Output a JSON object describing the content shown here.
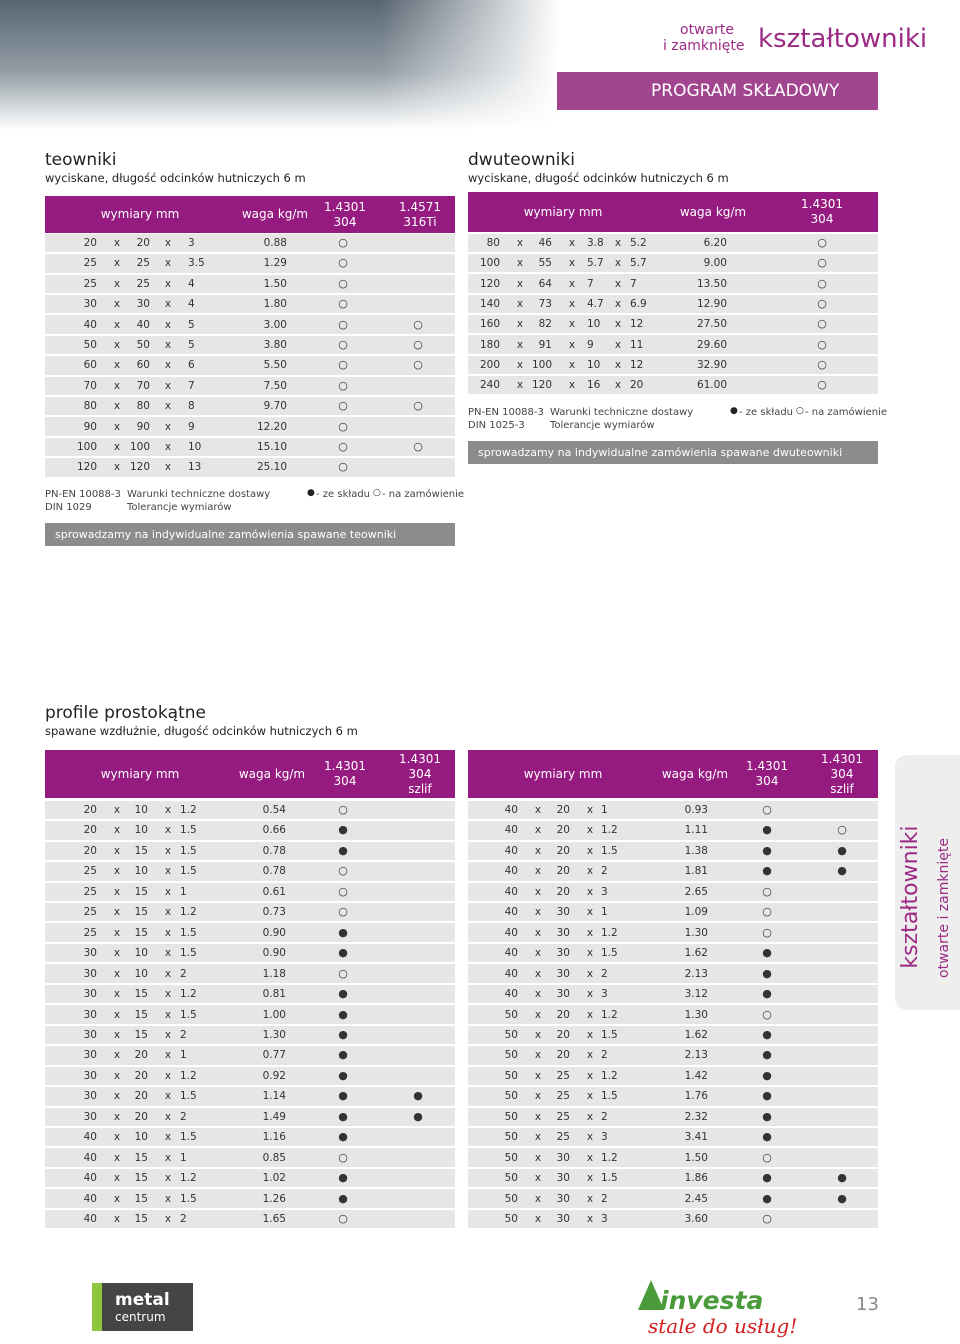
{
  "header": {
    "line1": "otwarte",
    "line2": "i zamknięte",
    "title": "kształtowniki",
    "band": "PROGRAM SKŁADOWY"
  },
  "dim_separator": "x",
  "teowniki": {
    "title": "teowniki",
    "subtitle": "wyciskane, długość odcinków hutniczych 6 m",
    "header": [
      [
        "wymiary mm"
      ],
      [
        "waga kg/m"
      ],
      [
        "1.4301",
        "304"
      ],
      [
        "1.4571",
        "316Ti"
      ]
    ],
    "rows": [
      [
        "20",
        "20",
        "3",
        "0.88",
        "○",
        null
      ],
      [
        "25",
        "25",
        "3.5",
        "1.29",
        "○",
        null
      ],
      [
        "25",
        "25",
        "4",
        "1.50",
        "○",
        null
      ],
      [
        "30",
        "30",
        "4",
        "1.80",
        "○",
        null
      ],
      [
        "40",
        "40",
        "5",
        "3.00",
        "○",
        "○"
      ],
      [
        "50",
        "50",
        "5",
        "3.80",
        "○",
        "○"
      ],
      [
        "60",
        "60",
        "6",
        "5.50",
        "○",
        "○"
      ],
      [
        "70",
        "70",
        "7",
        "7.50",
        "○",
        null
      ],
      [
        "80",
        "80",
        "8",
        "9.70",
        "○",
        "○"
      ],
      [
        "90",
        "90",
        "9",
        "12.20",
        "○",
        null
      ],
      [
        "100",
        "100",
        "10",
        "15.10",
        "○",
        "○"
      ],
      [
        "120",
        "120",
        "13",
        "25.10",
        "○",
        null
      ]
    ],
    "norms": [
      "PN-EN 10088-3",
      "DIN 1029"
    ],
    "norm_texts": [
      "Warunki techniczne dostawy",
      "Tolerancje wymiarów"
    ],
    "legend": [
      {
        "symbol": "●",
        "text": "- ze składu"
      },
      {
        "symbol": "○",
        "text": "- na zamówienie"
      }
    ],
    "banner": "sprowadzamy na indywidualne zamówienia spawane teowniki"
  },
  "dwuteowniki": {
    "title": "dwuteowniki",
    "subtitle": "wyciskane, długość odcinków hutniczych 6 m",
    "header": [
      [
        "wymiary mm"
      ],
      [
        "waga kg/m"
      ],
      [
        "1.4301",
        "304"
      ]
    ],
    "rows": [
      [
        "80",
        "46",
        "3.8",
        "5.2",
        "6.20",
        "○"
      ],
      [
        "100",
        "55",
        "5.7",
        "5.7",
        "9.00",
        "○"
      ],
      [
        "120",
        "64",
        "7",
        "7",
        "13.50",
        "○"
      ],
      [
        "140",
        "73",
        "4.7",
        "6.9",
        "12.90",
        "○"
      ],
      [
        "160",
        "82",
        "10",
        "12",
        "27.50",
        "○"
      ],
      [
        "180",
        "91",
        "9",
        "11",
        "29.60",
        "○"
      ],
      [
        "200",
        "100",
        "10",
        "12",
        "32.90",
        "○"
      ],
      [
        "240",
        "120",
        "16",
        "20",
        "61.00",
        "○"
      ]
    ],
    "norms": [
      "PN-EN 10088-3",
      "DIN 1025-3"
    ],
    "norm_texts": [
      "Warunki techniczne dostawy",
      "Tolerancje wymiarów"
    ],
    "legend": [
      {
        "symbol": "●",
        "text": "- ze składu"
      },
      {
        "symbol": "○",
        "text": "- na zamówienie"
      }
    ],
    "banner": "sprowadzamy na indywidualne zamówienia spawane dwuteowniki"
  },
  "profile": {
    "title": "profile prostokątne",
    "subtitle": "spawane wzdłużnie, długość odcinków hutniczych 6 m",
    "header": [
      [
        "wymiary mm"
      ],
      [
        "waga kg/m"
      ],
      [
        "1.4301",
        "304"
      ],
      [
        "1.4301",
        "304",
        "szlif"
      ]
    ],
    "left_rows": [
      [
        "20",
        "10",
        "1.2",
        "0.54",
        "○",
        null
      ],
      [
        "20",
        "10",
        "1.5",
        "0.66",
        "●",
        null
      ],
      [
        "20",
        "15",
        "1.5",
        "0.78",
        "●",
        null
      ],
      [
        "25",
        "10",
        "1.5",
        "0.78",
        "○",
        null
      ],
      [
        "25",
        "15",
        "1",
        "0.61",
        "○",
        null
      ],
      [
        "25",
        "15",
        "1.2",
        "0.73",
        "○",
        null
      ],
      [
        "25",
        "15",
        "1.5",
        "0.90",
        "●",
        null
      ],
      [
        "30",
        "10",
        "1.5",
        "0.90",
        "●",
        null
      ],
      [
        "30",
        "10",
        "2",
        "1.18",
        "○",
        null
      ],
      [
        "30",
        "15",
        "1.2",
        "0.81",
        "●",
        null
      ],
      [
        "30",
        "15",
        "1.5",
        "1.00",
        "●",
        null
      ],
      [
        "30",
        "15",
        "2",
        "1.30",
        "●",
        null
      ],
      [
        "30",
        "20",
        "1",
        "0.77",
        "●",
        null
      ],
      [
        "30",
        "20",
        "1.2",
        "0.92",
        "●",
        null
      ],
      [
        "30",
        "20",
        "1.5",
        "1.14",
        "●",
        "●"
      ],
      [
        "30",
        "20",
        "2",
        "1.49",
        "●",
        "●"
      ],
      [
        "40",
        "10",
        "1.5",
        "1.16",
        "●",
        null
      ],
      [
        "40",
        "15",
        "1",
        "0.85",
        "○",
        null
      ],
      [
        "40",
        "15",
        "1.2",
        "1.02",
        "●",
        null
      ],
      [
        "40",
        "15",
        "1.5",
        "1.26",
        "●",
        null
      ],
      [
        "40",
        "15",
        "2",
        "1.65",
        "○",
        null
      ]
    ],
    "right_rows": [
      [
        "40",
        "20",
        "1",
        "0.93",
        "○",
        null
      ],
      [
        "40",
        "20",
        "1.2",
        "1.11",
        "●",
        "○"
      ],
      [
        "40",
        "20",
        "1.5",
        "1.38",
        "●",
        "●"
      ],
      [
        "40",
        "20",
        "2",
        "1.81",
        "●",
        "●"
      ],
      [
        "40",
        "20",
        "3",
        "2.65",
        "○",
        null
      ],
      [
        "40",
        "30",
        "1",
        "1.09",
        "○",
        null
      ],
      [
        "40",
        "30",
        "1.2",
        "1.30",
        "○",
        null
      ],
      [
        "40",
        "30",
        "1.5",
        "1.62",
        "●",
        null
      ],
      [
        "40",
        "30",
        "2",
        "2.13",
        "●",
        null
      ],
      [
        "40",
        "30",
        "3",
        "3.12",
        "●",
        null
      ],
      [
        "50",
        "20",
        "1.2",
        "1.30",
        "○",
        null
      ],
      [
        "50",
        "20",
        "1.5",
        "1.62",
        "●",
        null
      ],
      [
        "50",
        "20",
        "2",
        "2.13",
        "●",
        null
      ],
      [
        "50",
        "25",
        "1.2",
        "1.42",
        "●",
        null
      ],
      [
        "50",
        "25",
        "1.5",
        "1.76",
        "●",
        null
      ],
      [
        "50",
        "25",
        "2",
        "2.32",
        "●",
        null
      ],
      [
        "50",
        "25",
        "3",
        "3.41",
        "●",
        null
      ],
      [
        "50",
        "30",
        "1.2",
        "1.50",
        "○",
        null
      ],
      [
        "50",
        "30",
        "1.5",
        "1.86",
        "●",
        "●"
      ],
      [
        "50",
        "30",
        "2",
        "2.45",
        "●",
        "●"
      ],
      [
        "50",
        "30",
        "3",
        "3.60",
        "○",
        null
      ]
    ]
  },
  "side_tab": {
    "title": "kształtowniki",
    "subtitle": "otwarte i zamknięte"
  },
  "footer": {
    "logo1_line1": "metal",
    "logo1_line2": "centrum",
    "logo2": "investa",
    "logo2_slogan": "stale do usług!",
    "page_number": "13"
  }
}
